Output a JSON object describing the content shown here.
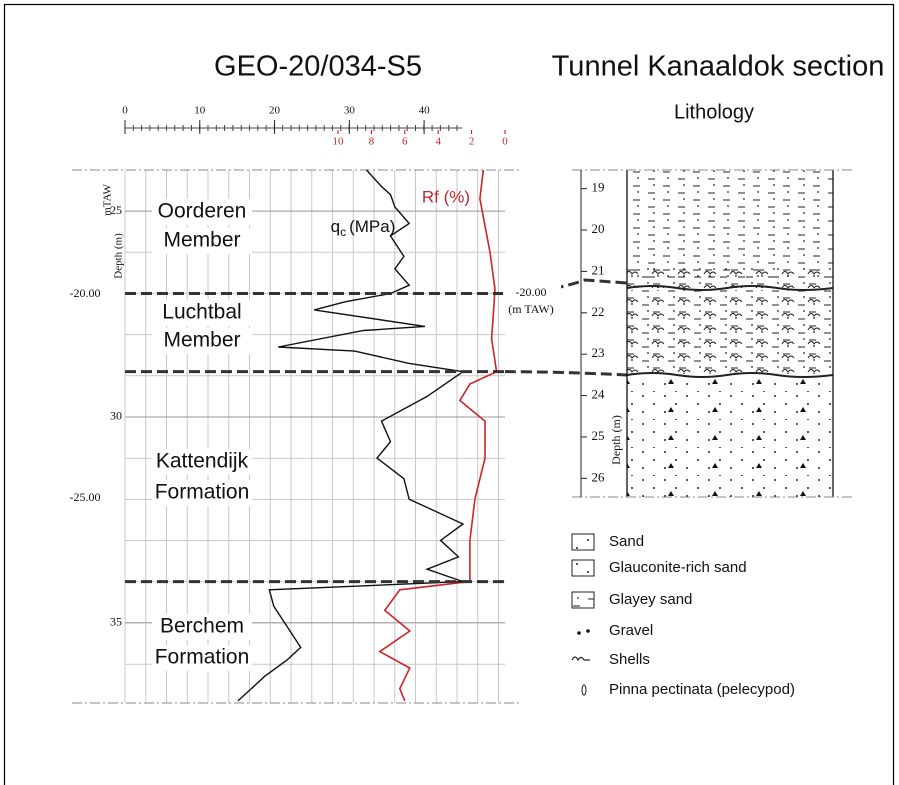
{
  "left_panel": {
    "title": "GEO-20/034-S5",
    "qc_axis": {
      "range": [
        0,
        45
      ],
      "ticks": [
        0,
        10,
        20,
        30,
        40
      ]
    },
    "rf_axis": {
      "range": [
        0,
        10
      ],
      "ticks": [
        10,
        8,
        6,
        4,
        2,
        0
      ]
    },
    "depth_axis": {
      "label": "Depth (m)",
      "range": [
        24,
        36.95
      ],
      "ticks": [
        25,
        30,
        35
      ]
    },
    "elevation_axis": {
      "label": "mTAW",
      "ticks": [
        "-20.00",
        "-25.00"
      ]
    },
    "curves": {
      "qc": {
        "label": "q",
        "label_sub": "c",
        "label_unit": "(MPa)",
        "depth": [
          24.0,
          24.4,
          24.6,
          24.9,
          25.3,
          25.6,
          26.1,
          26.4,
          26.8,
          27.0,
          27.2,
          27.4,
          27.8,
          27.9,
          28.3,
          28.4,
          28.7,
          28.9,
          29.5,
          30.1,
          30.6,
          31.0,
          31.5,
          32.0,
          32.3,
          32.6,
          33.0,
          33.4,
          33.7,
          34.0,
          34.2,
          34.6,
          35.1,
          35.6,
          35.9,
          36.3,
          36.6,
          36.9
        ],
        "values": [
          32.3,
          34.3,
          35.5,
          36.1,
          38.0,
          35.5,
          37.3,
          36.1,
          38.0,
          35.5,
          29.5,
          25.3,
          40.1,
          31.9,
          20.5,
          30.7,
          38.0,
          45.2,
          40.4,
          34.3,
          35.5,
          33.7,
          37.3,
          38.0,
          41.6,
          45.2,
          42.2,
          44.6,
          40.4,
          45.2,
          19.3,
          19.9,
          21.7,
          23.5,
          21.7,
          18.7,
          16.9,
          15.1
        ]
      },
      "rf": {
        "label": "Rf (%)",
        "depth": [
          24.0,
          24.7,
          26.0,
          26.9,
          28.1,
          28.9,
          29.2,
          29.6,
          30.1,
          31.0,
          32.0,
          33.0,
          34.0,
          34.2,
          34.7,
          35.2,
          35.7,
          36.1,
          36.6,
          36.9
        ],
        "values": [
          1.3,
          1.5,
          0.9,
          0.6,
          0.8,
          0.5,
          2.1,
          2.7,
          1.2,
          1.2,
          1.8,
          2.1,
          2.1,
          6.3,
          7.2,
          5.7,
          7.5,
          5.7,
          6.3,
          6.0
        ]
      }
    },
    "units": [
      {
        "lines": [
          "Oorderen",
          "Member"
        ]
      },
      {
        "lines": [
          "Luchtbal",
          "Member"
        ]
      },
      {
        "lines": [
          "Kattendijk",
          "Formation"
        ]
      },
      {
        "lines": [
          "Berchem",
          "Formation"
        ]
      }
    ],
    "boundaries": [
      27.0,
      28.9,
      34.0
    ]
  },
  "right_panel": {
    "title": "Tunnel Kanaaldok section",
    "subtitle": "Lithology",
    "depth_axis": {
      "label": "Depth (m)",
      "range": [
        18.55,
        26.45
      ],
      "ticks": [
        19,
        20,
        21,
        22,
        23,
        24,
        25,
        26
      ]
    },
    "annotation": [
      "-20.00",
      "(m TAW)"
    ],
    "legend": [
      "Sand",
      "Glauconite-rich sand",
      "Glayey sand",
      "Gravel",
      "Shells",
      "Pinna pectinata (pelecypod)"
    ]
  }
}
